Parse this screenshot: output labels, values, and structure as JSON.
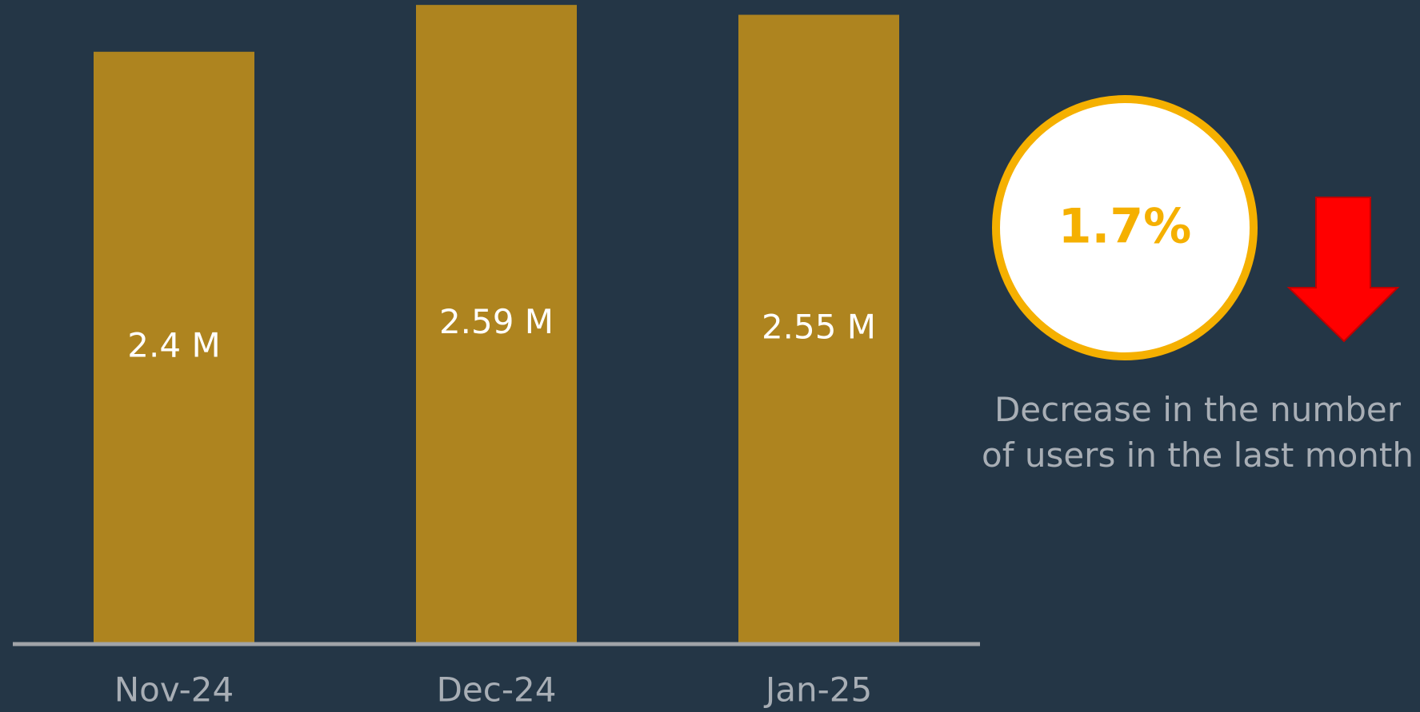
{
  "chart_data": {
    "type": "bar",
    "categories": [
      "Nov-24",
      "Dec-24",
      "Jan-25"
    ],
    "values": [
      2.4,
      2.59,
      2.55
    ],
    "value_labels": [
      "2.4 M",
      "2.59 M",
      "2.55 M"
    ],
    "color": "#ae841f",
    "ylim": [
      0,
      2.61
    ],
    "callout": {
      "value": 1.7,
      "label": "1.7%"
    },
    "callout_text": "Decrease in the number of users in the last month"
  }
}
